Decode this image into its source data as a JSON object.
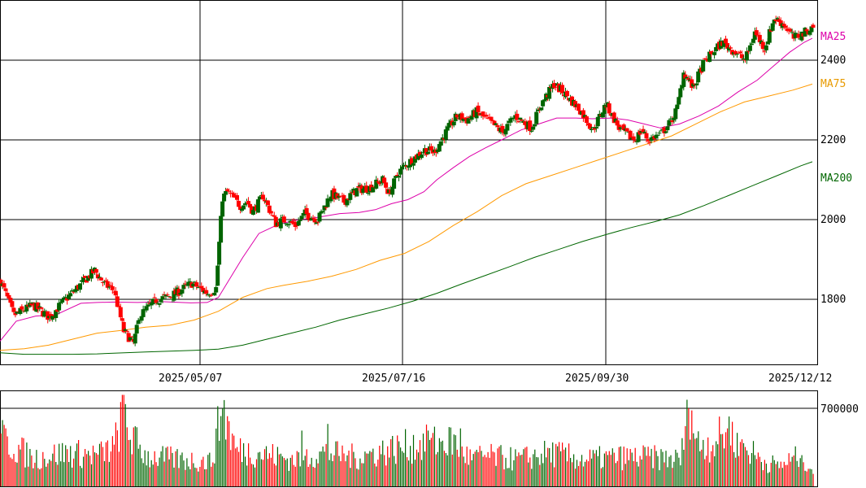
{
  "chart_data": [
    {
      "type": "candlestick",
      "title": "",
      "x_ticks": [
        "2025/05/07",
        "2025/07/16",
        "2025/09/30",
        "2025/12/12"
      ],
      "y_ticks": [
        "1800",
        "2000",
        "2200",
        "2400"
      ],
      "ylim": [
        1640,
        2550
      ],
      "grid": true,
      "up_color": "#006400",
      "down_color": "#ff0000",
      "price_path": [
        [
          0,
          1845
        ],
        [
          8,
          1760
        ],
        [
          20,
          1785
        ],
        [
          30,
          1755
        ],
        [
          40,
          1800
        ],
        [
          50,
          1840
        ],
        [
          58,
          1872
        ],
        [
          64,
          1838
        ],
        [
          70,
          1822
        ],
        [
          76,
          1720
        ],
        [
          82,
          1690
        ],
        [
          86,
          1760
        ],
        [
          96,
          1798
        ],
        [
          106,
          1810
        ],
        [
          114,
          1830
        ],
        [
          118,
          1840
        ],
        [
          124,
          1825
        ],
        [
          128,
          1815
        ],
        [
          133,
          1828
        ],
        [
          137,
          2055
        ],
        [
          140,
          2070
        ],
        [
          148,
          2035
        ],
        [
          152,
          2045
        ],
        [
          156,
          2020
        ],
        [
          162,
          2060
        ],
        [
          170,
          1990
        ],
        [
          176,
          2000
        ],
        [
          182,
          1985
        ],
        [
          188,
          2015
        ],
        [
          196,
          2000
        ],
        [
          204,
          2065
        ],
        [
          212,
          2045
        ],
        [
          220,
          2075
        ],
        [
          228,
          2080
        ],
        [
          236,
          2100
        ],
        [
          240,
          2065
        ],
        [
          246,
          2120
        ],
        [
          254,
          2150
        ],
        [
          262,
          2175
        ],
        [
          268,
          2170
        ],
        [
          276,
          2225
        ],
        [
          282,
          2260
        ],
        [
          288,
          2250
        ],
        [
          294,
          2270
        ],
        [
          302,
          2245
        ],
        [
          310,
          2220
        ],
        [
          318,
          2260
        ],
        [
          328,
          2230
        ],
        [
          334,
          2290
        ],
        [
          342,
          2340
        ],
        [
          350,
          2310
        ],
        [
          358,
          2275
        ],
        [
          366,
          2225
        ],
        [
          374,
          2290
        ],
        [
          382,
          2230
        ],
        [
          388,
          2210
        ],
        [
          392,
          2200
        ],
        [
          396,
          2225
        ],
        [
          400,
          2200
        ],
        [
          408,
          2215
        ],
        [
          414,
          2245
        ],
        [
          418,
          2280
        ],
        [
          422,
          2370
        ],
        [
          428,
          2330
        ],
        [
          434,
          2390
        ],
        [
          440,
          2420
        ],
        [
          446,
          2445
        ],
        [
          454,
          2420
        ],
        [
          460,
          2400
        ],
        [
          466,
          2470
        ],
        [
          472,
          2430
        ],
        [
          478,
          2505
        ],
        [
          484,
          2490
        ],
        [
          490,
          2455
        ],
        [
          497,
          2470
        ],
        [
          502,
          2485
        ]
      ],
      "ma_series": [
        {
          "name": "MA25",
          "color": "#dd00aa",
          "points": [
            [
              0,
              1695
            ],
            [
              10,
              1745
            ],
            [
              22,
              1758
            ],
            [
              35,
              1762
            ],
            [
              50,
              1790
            ],
            [
              60,
              1792
            ],
            [
              70,
              1793
            ],
            [
              85,
              1792
            ],
            [
              100,
              1794
            ],
            [
              118,
              1791
            ],
            [
              128,
              1792
            ],
            [
              135,
              1805
            ],
            [
              150,
              1905
            ],
            [
              160,
              1965
            ],
            [
              172,
              1988
            ],
            [
              182,
              1998
            ],
            [
              195,
              2005
            ],
            [
              210,
              2015
            ],
            [
              222,
              2018
            ],
            [
              232,
              2025
            ],
            [
              242,
              2040
            ],
            [
              252,
              2050
            ],
            [
              262,
              2070
            ],
            [
              270,
              2100
            ],
            [
              280,
              2130
            ],
            [
              290,
              2158
            ],
            [
              300,
              2180
            ],
            [
              310,
              2200
            ],
            [
              322,
              2225
            ],
            [
              333,
              2240
            ],
            [
              344,
              2255
            ],
            [
              356,
              2255
            ],
            [
              366,
              2253
            ],
            [
              378,
              2255
            ],
            [
              388,
              2250
            ],
            [
              398,
              2240
            ],
            [
              408,
              2230
            ],
            [
              420,
              2240
            ],
            [
              432,
              2260
            ],
            [
              444,
              2285
            ],
            [
              456,
              2320
            ],
            [
              468,
              2350
            ],
            [
              478,
              2385
            ],
            [
              488,
              2420
            ],
            [
              497,
              2445
            ],
            [
              502,
              2455
            ]
          ]
        },
        {
          "name": "MA75",
          "color": "#ff9900",
          "points": [
            [
              0,
              1672
            ],
            [
              15,
              1676
            ],
            [
              30,
              1685
            ],
            [
              45,
              1700
            ],
            [
              60,
              1715
            ],
            [
              75,
              1722
            ],
            [
              90,
              1730
            ],
            [
              105,
              1735
            ],
            [
              120,
              1748
            ],
            [
              135,
              1770
            ],
            [
              150,
              1805
            ],
            [
              165,
              1827
            ],
            [
              175,
              1835
            ],
            [
              190,
              1845
            ],
            [
              205,
              1858
            ],
            [
              220,
              1875
            ],
            [
              235,
              1898
            ],
            [
              250,
              1915
            ],
            [
              265,
              1945
            ],
            [
              280,
              1985
            ],
            [
              295,
              2020
            ],
            [
              310,
              2060
            ],
            [
              325,
              2090
            ],
            [
              340,
              2110
            ],
            [
              355,
              2130
            ],
            [
              370,
              2150
            ],
            [
              385,
              2170
            ],
            [
              400,
              2190
            ],
            [
              415,
              2210
            ],
            [
              430,
              2240
            ],
            [
              445,
              2270
            ],
            [
              460,
              2295
            ],
            [
              475,
              2310
            ],
            [
              490,
              2325
            ],
            [
              502,
              2340
            ]
          ]
        },
        {
          "name": "MA200",
          "color": "#006600",
          "points": [
            [
              0,
              1666
            ],
            [
              15,
              1662
            ],
            [
              45,
              1662
            ],
            [
              60,
              1663
            ],
            [
              90,
              1668
            ],
            [
              120,
              1672
            ],
            [
              135,
              1675
            ],
            [
              150,
              1685
            ],
            [
              165,
              1700
            ],
            [
              180,
              1715
            ],
            [
              195,
              1730
            ],
            [
              210,
              1748
            ],
            [
              225,
              1763
            ],
            [
              240,
              1778
            ],
            [
              255,
              1795
            ],
            [
              270,
              1815
            ],
            [
              285,
              1838
            ],
            [
              300,
              1860
            ],
            [
              315,
              1882
            ],
            [
              330,
              1905
            ],
            [
              345,
              1925
            ],
            [
              360,
              1945
            ],
            [
              375,
              1963
            ],
            [
              390,
              1980
            ],
            [
              405,
              1995
            ],
            [
              420,
              2012
            ],
            [
              435,
              2035
            ],
            [
              450,
              2060
            ],
            [
              465,
              2085
            ],
            [
              480,
              2110
            ],
            [
              495,
              2135
            ],
            [
              502,
              2145
            ]
          ]
        }
      ]
    },
    {
      "type": "bar",
      "title": "",
      "y_ticks": [
        "700000"
      ],
      "ylim": [
        0,
        820000
      ],
      "up_color": "#006400",
      "down_color": "#ff0000",
      "volume_anchors": [
        [
          0,
          430000
        ],
        [
          10,
          340000
        ],
        [
          20,
          250000
        ],
        [
          40,
          300000
        ],
        [
          60,
          280000
        ],
        [
          70,
          350000
        ],
        [
          76,
          700000
        ],
        [
          80,
          450000
        ],
        [
          90,
          270000
        ],
        [
          110,
          240000
        ],
        [
          130,
          220000
        ],
        [
          137,
          710000
        ],
        [
          145,
          330000
        ],
        [
          160,
          300000
        ],
        [
          180,
          240000
        ],
        [
          200,
          300000
        ],
        [
          220,
          260000
        ],
        [
          240,
          330000
        ],
        [
          260,
          380000
        ],
        [
          280,
          400000
        ],
        [
          290,
          250000
        ],
        [
          300,
          270000
        ],
        [
          320,
          240000
        ],
        [
          340,
          300000
        ],
        [
          360,
          240000
        ],
        [
          380,
          260000
        ],
        [
          400,
          260000
        ],
        [
          420,
          240000
        ],
        [
          426,
          720000
        ],
        [
          430,
          380000
        ],
        [
          440,
          390000
        ],
        [
          450,
          500000
        ],
        [
          460,
          350000
        ],
        [
          470,
          240000
        ],
        [
          480,
          180000
        ],
        [
          495,
          280000
        ],
        [
          502,
          140000
        ]
      ],
      "volume_spikes": [
        [
          76,
          820000
        ],
        [
          137,
          700000
        ],
        [
          202,
          560000
        ],
        [
          186,
          500000
        ],
        [
          264,
          500000
        ],
        [
          284,
          520000
        ],
        [
          425,
          700000
        ],
        [
          449,
          520000
        ],
        [
          455,
          480000
        ],
        [
          495,
          280000
        ]
      ]
    }
  ],
  "ma_labels": {
    "ma25": "MA25",
    "ma75": "MA75",
    "ma200": "MA200"
  },
  "colors": {
    "grid": "#000000",
    "background": "#ffffff"
  }
}
